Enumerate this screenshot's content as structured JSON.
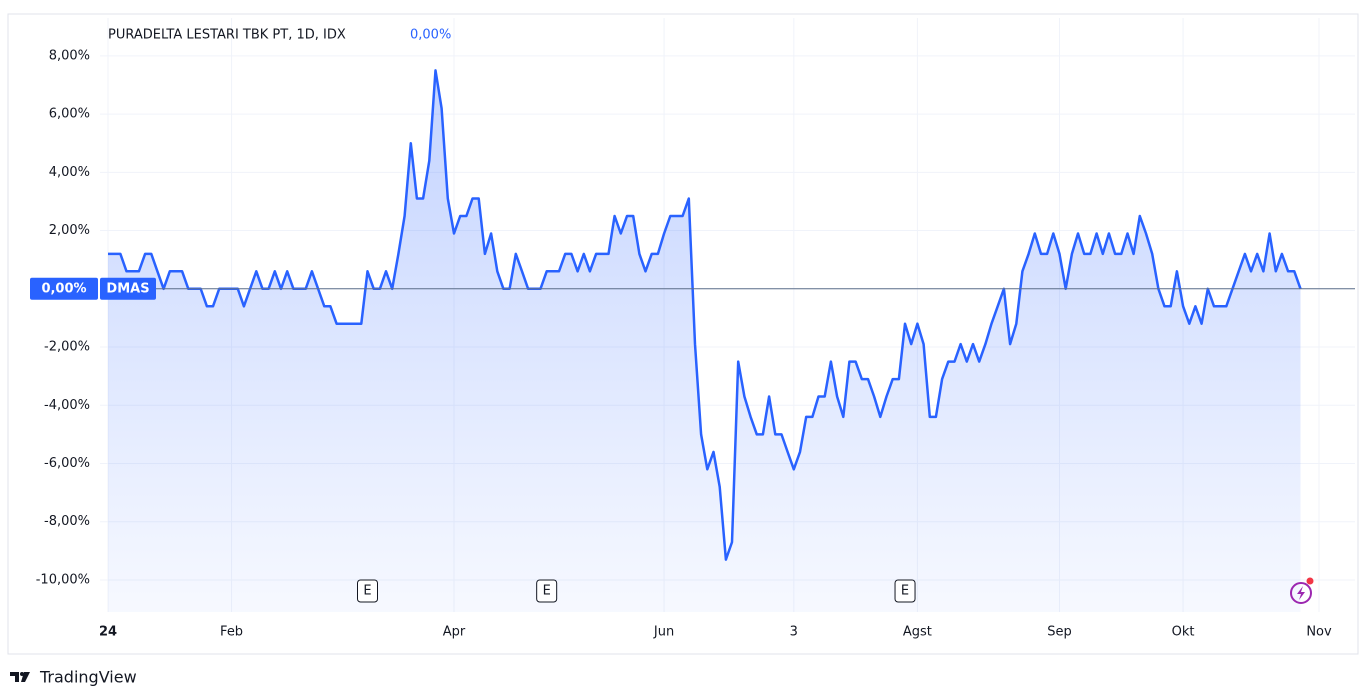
{
  "chart_data": {
    "type": "line",
    "title": "PURADELTA LESTARI TBK PT, 1D, IDX",
    "symbol": "DMAS",
    "last": {
      "value": 0,
      "label": "0,00%"
    },
    "color": "#2962ff",
    "grid": true,
    "brand": "TradingView",
    "events": [
      {
        "at": 42,
        "label": "E"
      },
      {
        "at": 71,
        "label": "E"
      },
      {
        "at": 129,
        "label": "E"
      }
    ],
    "ylim": [
      -11.1,
      9.3
    ],
    "yticks": [
      {
        "value": 8,
        "label": "8,00%"
      },
      {
        "value": 6,
        "label": "6,00%"
      },
      {
        "value": 4,
        "label": "4,00%"
      },
      {
        "value": 2,
        "label": "2,00%"
      },
      {
        "value": 0,
        "label": "0,00%"
      },
      {
        "value": -2,
        "label": "-2,00%"
      },
      {
        "value": -4,
        "label": "-4,00%"
      },
      {
        "value": -6,
        "label": "-6,00%"
      },
      {
        "value": -8,
        "label": "-8,00%"
      },
      {
        "value": -10,
        "label": "-10,00%"
      }
    ],
    "categories": [
      "24",
      null,
      null,
      null,
      null,
      null,
      null,
      null,
      null,
      null,
      null,
      null,
      null,
      null,
      null,
      null,
      null,
      null,
      null,
      null,
      "Feb",
      null,
      null,
      null,
      null,
      null,
      null,
      null,
      null,
      null,
      null,
      null,
      null,
      null,
      null,
      null,
      null,
      null,
      null,
      null,
      null,
      null,
      null,
      null,
      null,
      null,
      null,
      null,
      null,
      null,
      null,
      null,
      null,
      null,
      null,
      null,
      "Apr",
      null,
      null,
      null,
      null,
      null,
      null,
      null,
      null,
      null,
      null,
      null,
      null,
      null,
      null,
      null,
      null,
      null,
      null,
      null,
      null,
      null,
      null,
      null,
      null,
      null,
      null,
      null,
      null,
      null,
      null,
      null,
      null,
      null,
      "Jun",
      null,
      null,
      null,
      null,
      null,
      null,
      null,
      null,
      null,
      null,
      null,
      null,
      null,
      null,
      null,
      null,
      null,
      null,
      null,
      null,
      "3",
      null,
      null,
      null,
      null,
      null,
      null,
      null,
      null,
      null,
      null,
      null,
      null,
      null,
      null,
      null,
      null,
      null,
      null,
      null,
      "Agst",
      null,
      null,
      null,
      null,
      null,
      null,
      null,
      null,
      null,
      null,
      null,
      null,
      null,
      null,
      null,
      null,
      null,
      null,
      null,
      null,
      null,
      null,
      "Sep",
      null,
      null,
      null,
      null,
      null,
      null,
      null,
      null,
      null,
      null,
      null,
      null,
      null,
      null,
      null,
      null,
      null,
      null,
      null,
      "Okt",
      null,
      null,
      null,
      null,
      null,
      null,
      null,
      null,
      null,
      null,
      null,
      null,
      null,
      null,
      null,
      null,
      null,
      null,
      null,
      null,
      null,
      "Nov"
    ],
    "values": [
      1.2,
      1.2,
      1.2,
      0.6,
      0.6,
      0.6,
      1.2,
      1.2,
      0.6,
      0,
      0.6,
      0.6,
      0.6,
      0,
      0,
      0,
      -0.6,
      -0.6,
      0,
      0,
      0,
      0,
      -0.6,
      0,
      0.6,
      0,
      0,
      0.6,
      0,
      0.6,
      0,
      0,
      0,
      0.6,
      0,
      -0.6,
      -0.6,
      -1.2,
      -1.2,
      -1.2,
      -1.2,
      -1.2,
      0.6,
      0,
      0,
      0.6,
      0,
      1.2,
      2.5,
      5,
      3.1,
      3.1,
      4.4,
      7.5,
      6.2,
      3.1,
      1.9,
      2.5,
      2.5,
      3.1,
      3.1,
      1.2,
      1.9,
      0.6,
      0,
      0,
      1.2,
      0.6,
      0,
      0,
      0,
      0.6,
      0.6,
      0.6,
      1.2,
      1.2,
      0.6,
      1.2,
      0.6,
      1.2,
      1.2,
      1.2,
      2.5,
      1.9,
      2.5,
      2.5,
      1.2,
      0.6,
      1.2,
      1.2,
      1.9,
      2.5,
      2.5,
      2.5,
      3.1,
      -1.9,
      -5,
      -6.2,
      -5.6,
      -6.8,
      -9.3,
      -8.7,
      -2.5,
      -3.7,
      -4.4,
      -5,
      -5,
      -3.7,
      -5,
      -5,
      -5.6,
      -6.2,
      -5.6,
      -4.4,
      -4.4,
      -3.7,
      -3.7,
      -2.5,
      -3.7,
      -4.4,
      -2.5,
      -2.5,
      -3.1,
      -3.1,
      -3.7,
      -4.4,
      -3.7,
      -3.1,
      -3.1,
      -1.2,
      -1.9,
      -1.2,
      -1.9,
      -4.4,
      -4.4,
      -3.1,
      -2.5,
      -2.5,
      -1.9,
      -2.5,
      -1.9,
      -2.5,
      -1.9,
      -1.2,
      -0.6,
      0,
      -1.9,
      -1.2,
      0.6,
      1.2,
      1.9,
      1.2,
      1.2,
      1.9,
      1.2,
      0,
      1.2,
      1.9,
      1.2,
      1.2,
      1.9,
      1.2,
      1.9,
      1.2,
      1.2,
      1.9,
      1.2,
      2.5,
      1.9,
      1.2,
      0,
      -0.6,
      -0.6,
      0.6,
      -0.6,
      -1.2,
      -0.6,
      -1.2,
      0,
      -0.6,
      -0.6,
      -0.6,
      0,
      0.6,
      1.2,
      0.6,
      1.2,
      0.6,
      1.9,
      0.6,
      1.2,
      0.6,
      0.6,
      0,
      null,
      null,
      null
    ]
  }
}
